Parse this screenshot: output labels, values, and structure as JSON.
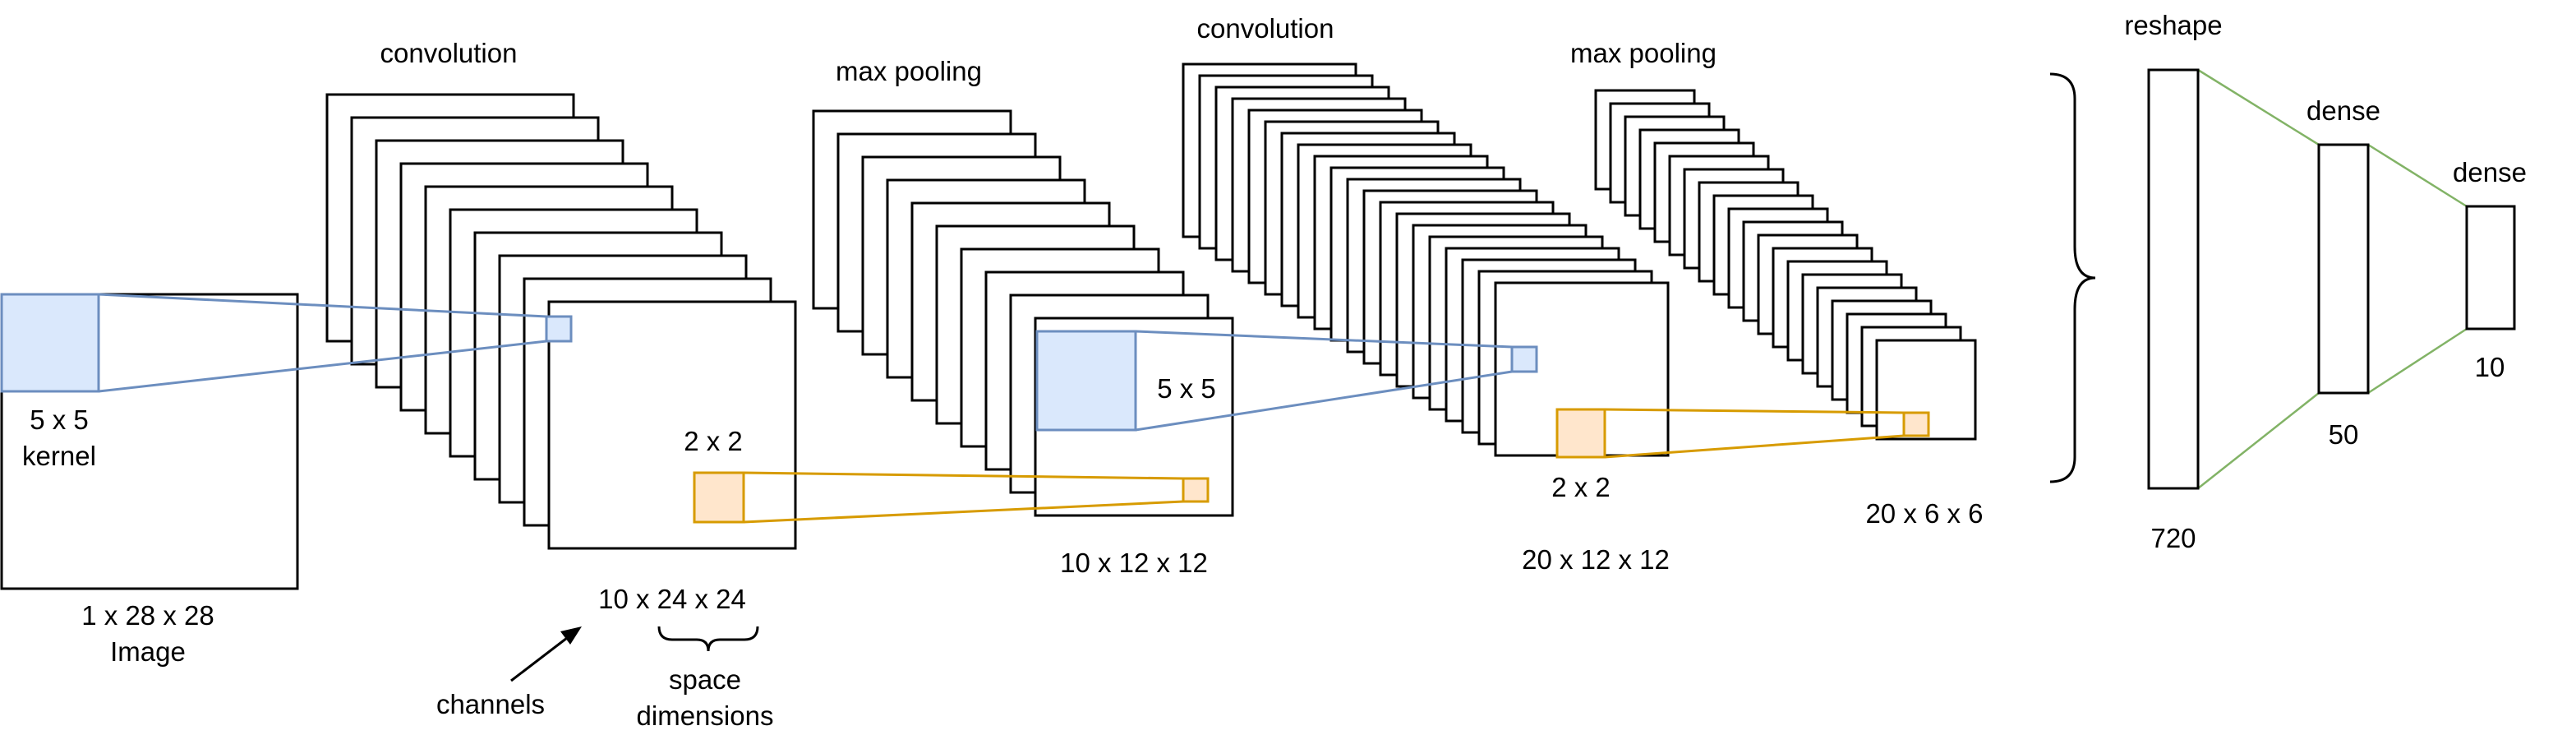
{
  "labels": {
    "conv1": "convolution",
    "pool1": "max pooling",
    "conv2": "convolution",
    "pool2": "max pooling",
    "reshape": "reshape",
    "dense1": "dense",
    "dense2": "dense",
    "kernel_size": "5 x 5",
    "kernel_word": "kernel",
    "image_dims": "1 x 28 x 28",
    "image_word": "Image",
    "pool1_window": "2 x 2",
    "conv1_out": "10 x 24 x 24",
    "channels": "channels",
    "space_line1": "space",
    "space_line2": "dimensions",
    "conv2_kernel": "5 x 5",
    "pool1_out": "10 x 12 x 12",
    "pool2_window": "2 x 2",
    "conv2_out": "20 x 12 x 12",
    "pool2_out": "20 x 6 x 6",
    "reshape_size": "720",
    "dense1_size": "50",
    "dense2_size": "10"
  },
  "colors": {
    "kernel_fill": "#dae8fc",
    "kernel_stroke": "#6c8ebf",
    "pool_fill": "#ffe6cc",
    "pool_stroke": "#d79b00",
    "dense_link": "#82b366",
    "line": "#000000"
  }
}
